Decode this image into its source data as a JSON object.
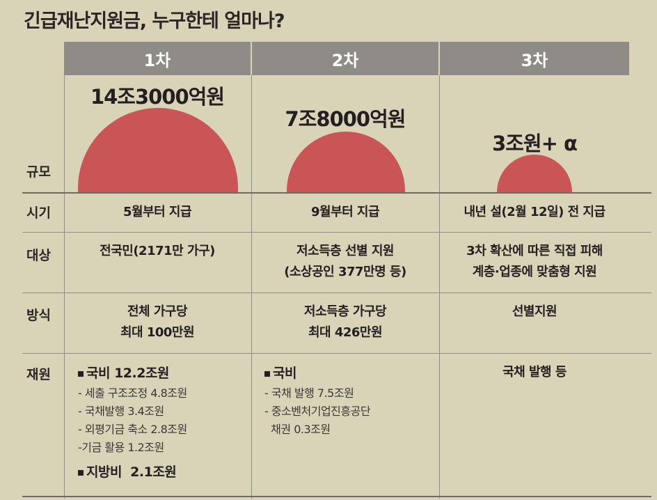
{
  "title": "긴급재난지원금, 누구한테 얼마나?",
  "columns": [
    {
      "header": "1차",
      "amount": "14조3000억원",
      "timing": "5월부터 지급",
      "target": [
        "전국민(2171만 가구)"
      ],
      "method": [
        "전체 가구당",
        "최대 100만원"
      ],
      "financing": [
        {
          "kind": "main",
          "text": "국비 12.2조원"
        },
        {
          "kind": "sub",
          "text": "- 세출 구조조정 4.8조원"
        },
        {
          "kind": "sub",
          "text": "- 국채발행 3.4조원"
        },
        {
          "kind": "sub",
          "text": "- 외평기금 축소 2.8조원"
        },
        {
          "kind": "sub",
          "text": "-기금 활용 1.2조원"
        },
        {
          "kind": "main",
          "text": "지방비  2.1조원"
        }
      ]
    },
    {
      "header": "2차",
      "amount": "7조8000억원",
      "timing": "9월부터 지급",
      "target": [
        "저소득층 선별 지원",
        "(소상공인 377만명 등)"
      ],
      "method": [
        "저소득층 가구당",
        "최대 426만원"
      ],
      "financing": [
        {
          "kind": "main",
          "text": "국비"
        },
        {
          "kind": "sub",
          "text": "- 국채 발행 7.5조원"
        },
        {
          "kind": "sub",
          "text": "- 중소벤처기업진흥공단"
        },
        {
          "kind": "sub",
          "text": "  채권 0.3조원"
        }
      ]
    },
    {
      "header": "3차",
      "amount": "3조원+ α",
      "timing": "내년 설(2월 12일) 전 지급",
      "target": [
        "3차 확산에 따른 직접 피해",
        "계층·업종에 맞춤형 지원"
      ],
      "method": [
        "선별지원"
      ],
      "financing_text": "국채 발행 등"
    }
  ],
  "row_labels": {
    "scale": "규모",
    "timing": "시기",
    "target": "대상",
    "method": "방식",
    "financing": "재원"
  },
  "colors": {
    "background": "#d9d4b7",
    "header": "#8f8b86",
    "circle": "#c95557"
  }
}
